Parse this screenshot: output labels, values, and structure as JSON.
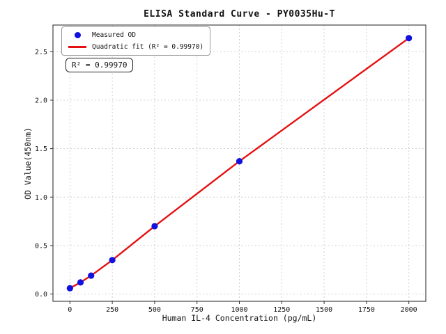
{
  "chart_data": {
    "type": "scatter",
    "title": "ELISA Standard Curve - PY0035Hu-T",
    "xlabel": "Human IL-4 Concentration (pg/mL)",
    "ylabel": "OD Value(450nm)",
    "xlim": [
      -100,
      2100
    ],
    "ylim": [
      -0.075,
      2.775
    ],
    "x_ticks": [
      0,
      250,
      500,
      750,
      1000,
      1250,
      1500,
      1750,
      2000
    ],
    "x_tick_labels": [
      "0",
      "250",
      "500",
      "750",
      "1000",
      "1250",
      "1500",
      "1750",
      "2000"
    ],
    "y_ticks": [
      0.0,
      0.5,
      1.0,
      1.5,
      2.0,
      2.5
    ],
    "y_tick_labels": [
      "0.0",
      "0.5",
      "1.0",
      "1.5",
      "2.0",
      "2.5"
    ],
    "grid": true,
    "legend_position": "upper left",
    "series": [
      {
        "name": "Measured OD",
        "type": "scatter",
        "color": "#1010e0",
        "x": [
          0,
          62.5,
          125,
          250,
          500,
          1000,
          2000
        ],
        "y": [
          0.06,
          0.12,
          0.19,
          0.35,
          0.7,
          1.37,
          2.64
        ]
      },
      {
        "name": "Quadratic fit (R² = 0.99970)",
        "type": "line",
        "color": "#e41111"
      }
    ],
    "annotation": {
      "text": "R² = 0.99970"
    },
    "colors": {
      "grid": "#cccccc",
      "spine": "#333333",
      "tick_label": "#111111"
    }
  }
}
